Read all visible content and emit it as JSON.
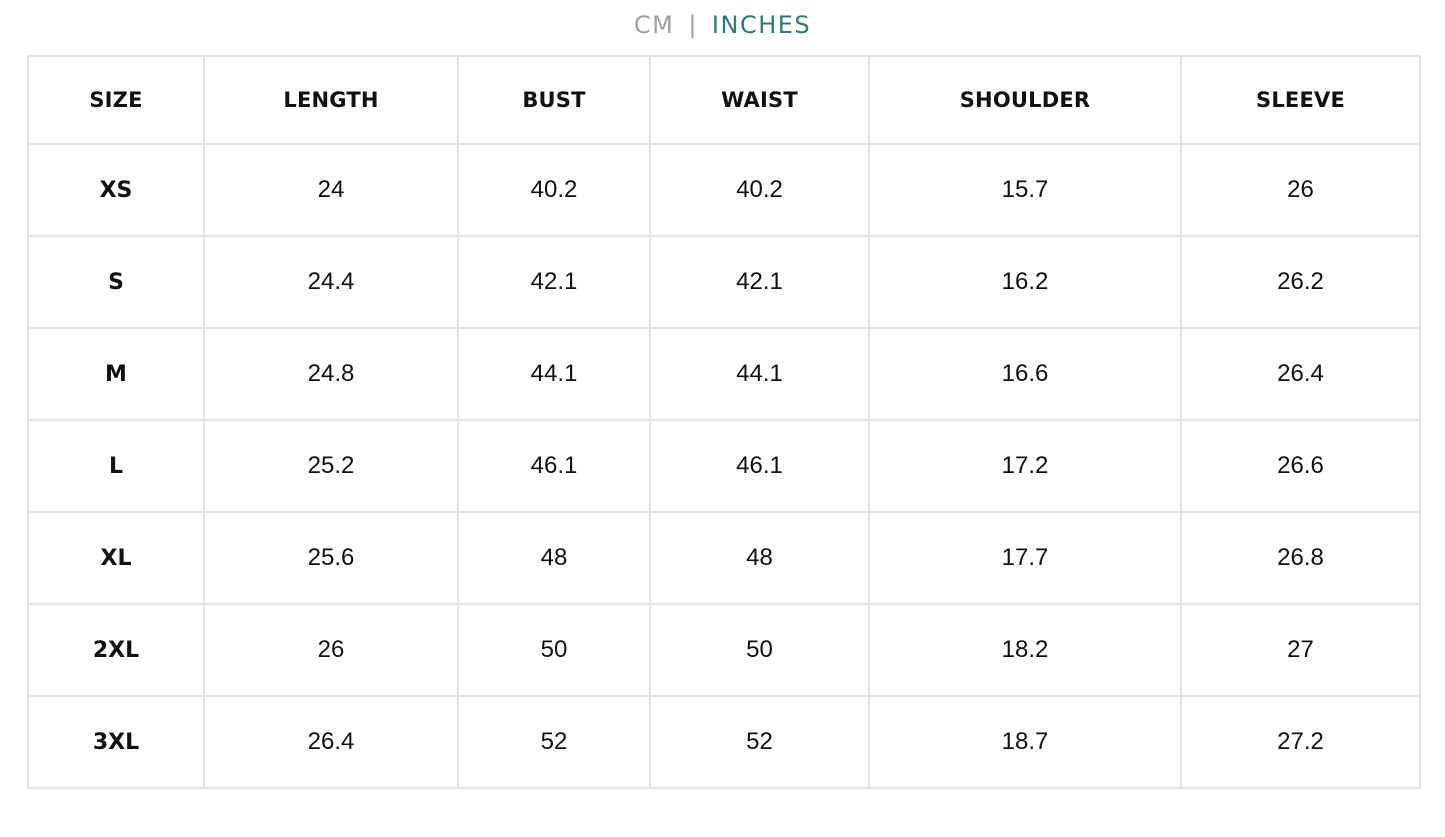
{
  "unit_toggle": {
    "cm_label": "CM",
    "separator": "|",
    "inches_label": "INCHES",
    "active": "INCHES",
    "active_color": "#2d7a7a",
    "inactive_color": "#a0a0a0"
  },
  "table": {
    "headers": [
      "SIZE",
      "LENGTH",
      "BUST",
      "WAIST",
      "SHOULDER",
      "SLEEVE"
    ],
    "rows": [
      [
        "XS",
        "24",
        "40.2",
        "40.2",
        "15.7",
        "26"
      ],
      [
        "S",
        "24.4",
        "42.1",
        "42.1",
        "16.2",
        "26.2"
      ],
      [
        "M",
        "24.8",
        "44.1",
        "44.1",
        "16.6",
        "26.4"
      ],
      [
        "L",
        "25.2",
        "46.1",
        "46.1",
        "17.2",
        "26.6"
      ],
      [
        "XL",
        "25.6",
        "48",
        "48",
        "17.7",
        "26.8"
      ],
      [
        "2XL",
        "26",
        "50",
        "50",
        "18.2",
        "27"
      ],
      [
        "3XL",
        "26.4",
        "52",
        "52",
        "18.7",
        "27.2"
      ]
    ],
    "border_color": "#e3e3e3"
  }
}
